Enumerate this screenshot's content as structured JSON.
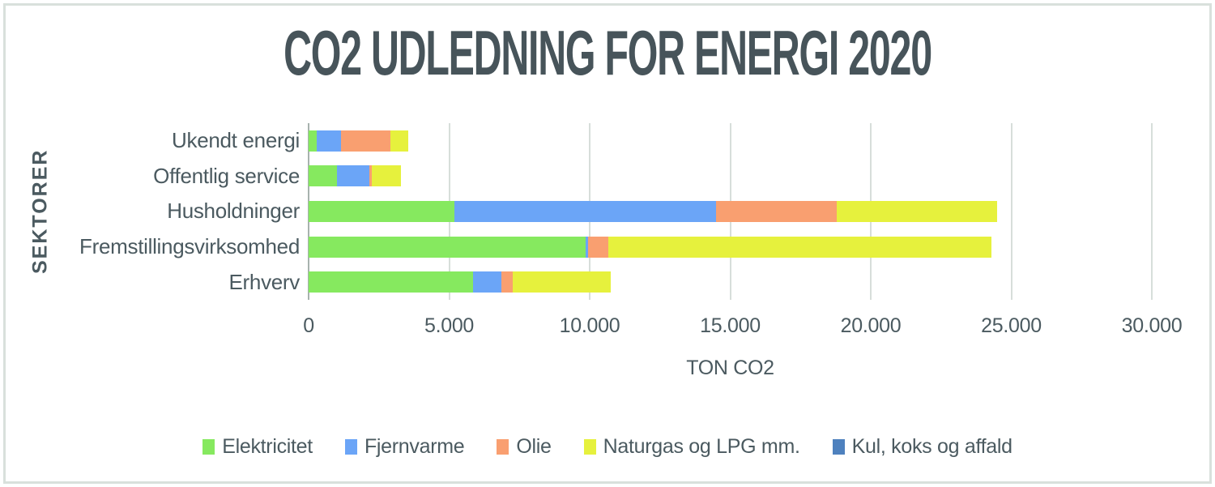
{
  "chart_data": {
    "type": "bar",
    "orientation": "horizontal",
    "stacked": true,
    "title": "CO2 UDLEDNING FOR ENERGI 2020",
    "xlabel": "TON CO2",
    "ylabel": "SEKTORER",
    "categories": [
      "Ukendt energi",
      "Offentlig service",
      "Husholdninger",
      "Fremstillingsvirksomhed",
      "Erhverv"
    ],
    "series": [
      {
        "name": "Elektricitet",
        "color": "#86E95F",
        "values": [
          300,
          1000,
          5200,
          9850,
          5850
        ]
      },
      {
        "name": "Fjernvarme",
        "color": "#6BA5F7",
        "values": [
          850,
          1150,
          9300,
          100,
          1000
        ]
      },
      {
        "name": "Olie",
        "color": "#F99F70",
        "values": [
          1750,
          100,
          4300,
          700,
          400
        ]
      },
      {
        "name": "Naturgas og LPG mm.",
        "color": "#E6F13D",
        "values": [
          650,
          1050,
          5700,
          13650,
          3500
        ]
      },
      {
        "name": "Kul, koks og affald",
        "color": "#4E81BE",
        "values": [
          0,
          0,
          0,
          0,
          0
        ]
      }
    ],
    "xlim": [
      0,
      30000
    ],
    "xticks": [
      0,
      5000,
      10000,
      15000,
      20000,
      25000,
      30000
    ],
    "xtick_labels": [
      "0",
      "5.000",
      "10.000",
      "15.000",
      "20.000",
      "25.000",
      "30.000"
    ],
    "grid": true,
    "legend_position": "bottom",
    "styles": {
      "text_color": "#4B5A60",
      "title_color": "#47545A",
      "gridline_color": "#D7DEDA",
      "axis_line_color": "#A7B2AE",
      "frame_border_color": "#D9E0DC",
      "background": "#FFFFFF"
    }
  }
}
